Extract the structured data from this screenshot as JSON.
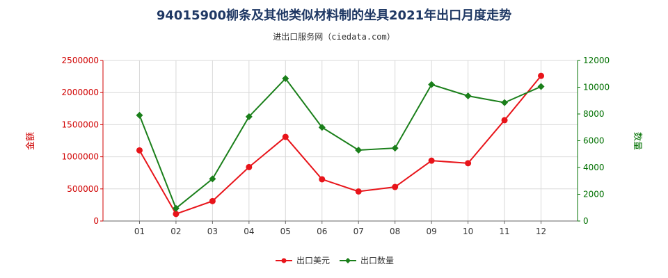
{
  "chart_data": {
    "type": "line",
    "title": "94015900柳条及其他类似材料制的坐具2021年出口月度走势",
    "subtitle": "进出口服务网（ciedata.com）",
    "categories": [
      "01",
      "02",
      "03",
      "04",
      "05",
      "06",
      "07",
      "08",
      "09",
      "10",
      "11",
      "12"
    ],
    "ylabel_left": "金额",
    "ylabel_right": "数量",
    "ylim_left": [
      0,
      2500000
    ],
    "ylim_right": [
      0,
      12000
    ],
    "yticks_left": [
      "0",
      "500000",
      "1000000",
      "1500000",
      "2000000",
      "2500000"
    ],
    "yticks_right": [
      "0",
      "2000",
      "4000",
      "6000",
      "8000",
      "10000",
      "12000"
    ],
    "series": [
      {
        "name": "出口美元",
        "axis": "left",
        "color": "#e8141a",
        "values": [
          1100000,
          110000,
          310000,
          840000,
          1310000,
          650000,
          460000,
          530000,
          940000,
          900000,
          1570000,
          2260000
        ]
      },
      {
        "name": "出口数量",
        "axis": "right",
        "color": "#1a7f1a",
        "values": [
          7900,
          950,
          3150,
          7800,
          10650,
          7000,
          5300,
          5450,
          10200,
          9350,
          8850,
          10050
        ]
      }
    ],
    "legend_position": "bottom",
    "grid": true
  }
}
